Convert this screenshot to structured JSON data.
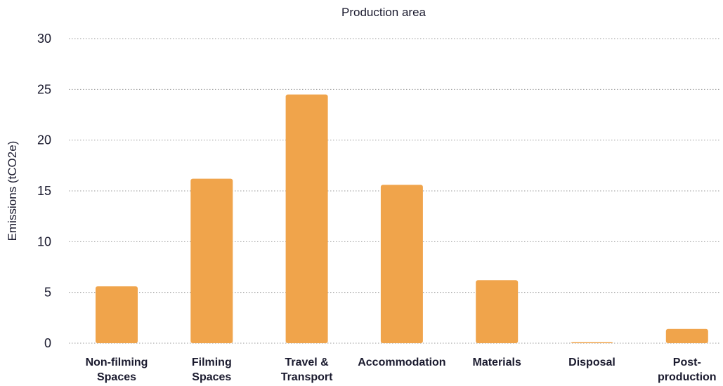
{
  "chart_data": {
    "type": "bar",
    "title": "Production area",
    "xlabel": "",
    "ylabel": "Emissions (tCO2e)",
    "ylim": [
      0,
      30
    ],
    "yticks": [
      "0",
      "5",
      "10",
      "15",
      "20",
      "25",
      "30"
    ],
    "grid": true,
    "legend": "none",
    "bar_color": "#f0a44b",
    "categories": [
      [
        "Non-filming",
        "Spaces"
      ],
      [
        "Filming",
        "Spaces"
      ],
      [
        "Travel &",
        "Transport"
      ],
      [
        "Accommodation"
      ],
      [
        "Materials"
      ],
      [
        "Disposal"
      ],
      [
        "Post-",
        "production"
      ]
    ],
    "values": [
      5.6,
      16.2,
      24.5,
      15.6,
      6.2,
      0.1,
      1.4
    ]
  }
}
